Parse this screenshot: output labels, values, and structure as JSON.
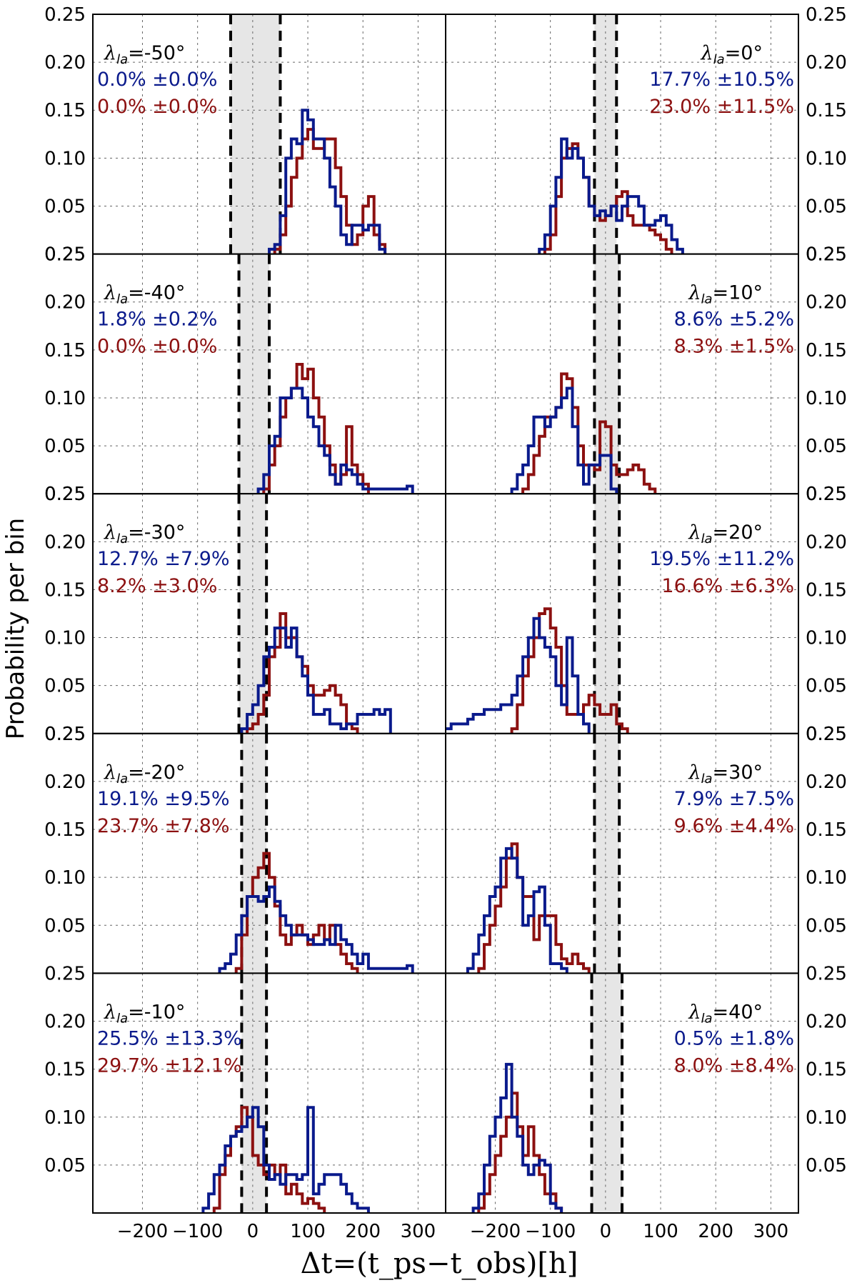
{
  "chart_data": {
    "type": "histogram-grid",
    "ylabel": "Probability per bin",
    "xlabel": "Δt=(t_ps−t_obs)[h]",
    "xlim": [
      -290,
      350
    ],
    "ylim": [
      0,
      0.25
    ],
    "x_ticks": [
      -200,
      -100,
      0,
      100,
      200,
      300
    ],
    "x_tick_labels": [
      "−200",
      "−100",
      "0",
      "100",
      "200",
      "300"
    ],
    "y_ticks": [
      0.05,
      0.1,
      0.15,
      0.2,
      0.25
    ],
    "y_tick_labels": [
      "0.05",
      "0.10",
      "0.15",
      "0.20",
      "0.25"
    ],
    "bottom_label": "0.25",
    "grid": true,
    "colors": {
      "blue": "#0a1a8c",
      "red": "#8c1010",
      "shade": "#e6e6e6"
    },
    "panels": [
      {
        "lambda": "-50",
        "column": "left",
        "row": 0,
        "label_blue": "0.0% ±0.0%",
        "label_red": "0.0% ±0.0%",
        "shade": [
          -40,
          50
        ],
        "blue": {
          "x0": 30,
          "bin": 10,
          "values": [
            0.005,
            0.01,
            0.04,
            0.1,
            0.12,
            0.115,
            0.15,
            0.14,
            0.12,
            0.12,
            0.1,
            0.07,
            0.05,
            0.02,
            0.01,
            0.03,
            0.03,
            0.025,
            0.03,
            0.03,
            0.005
          ]
        },
        "red": {
          "x0": 40,
          "bin": 10,
          "values": [
            0.005,
            0.02,
            0.05,
            0.08,
            0.1,
            0.12,
            0.13,
            0.11,
            0.11,
            0.12,
            0.12,
            0.09,
            0.06,
            0.03,
            0.01,
            0.02,
            0.05,
            0.06,
            0.02,
            0.01
          ]
        }
      },
      {
        "lambda": "-40",
        "column": "left",
        "row": 1,
        "label_blue": "1.8% ±0.2%",
        "label_red": "0.0% ±0.0%",
        "shade": [
          -25,
          30
        ],
        "blue": {
          "x0": 10,
          "bin": 10,
          "values": [
            0.005,
            0.02,
            0.05,
            0.06,
            0.1,
            0.1,
            0.11,
            0.11,
            0.1,
            0.08,
            0.07,
            0.05,
            0.04,
            0.02,
            0.01,
            0.03,
            0.025,
            0.02,
            0.01,
            0.005,
            0.005,
            0.005,
            0.005,
            0.005,
            0.005,
            0.005,
            0.005,
            0.008
          ]
        },
        "red": {
          "x0": 20,
          "bin": 10,
          "values": [
            0.005,
            0.03,
            0.05,
            0.08,
            0.1,
            0.11,
            0.135,
            0.12,
            0.13,
            0.1,
            0.08,
            0.05,
            0.03,
            0.01,
            0.02,
            0.07,
            0.03,
            0.02,
            0.01
          ]
        }
      },
      {
        "lambda": "-30",
        "column": "left",
        "row": 2,
        "label_blue": "12.7% ±7.9%",
        "label_red": "8.2% ±3.0%",
        "shade": [
          -25,
          25
        ],
        "blue": {
          "x0": -20,
          "bin": 10,
          "values": [
            0.005,
            0.02,
            0.03,
            0.05,
            0.08,
            0.09,
            0.11,
            0.11,
            0.09,
            0.11,
            0.08,
            0.06,
            0.04,
            0.02,
            0.02,
            0.025,
            0.01,
            0.01,
            0.005,
            0.01,
            0.01,
            0.02,
            0.02,
            0.02,
            0.025,
            0.02,
            0.025
          ]
        },
        "red": {
          "x0": -10,
          "bin": 10,
          "values": [
            0.005,
            0.01,
            0.02,
            0.04,
            0.08,
            0.09,
            0.125,
            0.1,
            0.1,
            0.08,
            0.07,
            0.05,
            0.04,
            0.04,
            0.045,
            0.05,
            0.04,
            0.03,
            0.01,
            0.005
          ]
        }
      },
      {
        "lambda": "-20",
        "column": "left",
        "row": 3,
        "label_blue": "19.1% ±9.5%",
        "label_red": "23.7% ±7.8%",
        "shade": [
          -20,
          25
        ],
        "blue": {
          "x0": -60,
          "bin": 10,
          "values": [
            0.005,
            0.01,
            0.02,
            0.04,
            0.06,
            0.08,
            0.08,
            0.075,
            0.08,
            0.09,
            0.075,
            0.06,
            0.05,
            0.04,
            0.04,
            0.04,
            0.035,
            0.03,
            0.03,
            0.035,
            0.03,
            0.05,
            0.035,
            0.03,
            0.02,
            0.01,
            0.02,
            0.005,
            0.005,
            0.005,
            0.005,
            0.005,
            0.005,
            0.005,
            0.008
          ]
        },
        "red": {
          "x0": -30,
          "bin": 10,
          "values": [
            0.005,
            0.04,
            0.08,
            0.1,
            0.11,
            0.125,
            0.1,
            0.07,
            0.04,
            0.03,
            0.04,
            0.05,
            0.04,
            0.03,
            0.04,
            0.05,
            0.035,
            0.05,
            0.03,
            0.02,
            0.01,
            0.005
          ]
        }
      },
      {
        "lambda": "-10",
        "column": "left",
        "row": 4,
        "label_blue": "25.5% ±13.3%",
        "label_red": "29.7% ±12.1%",
        "shade": [
          -20,
          25
        ],
        "blue": {
          "x0": -90,
          "bin": 10,
          "values": [
            0.005,
            0.02,
            0.04,
            0.05,
            0.07,
            0.08,
            0.085,
            0.09,
            0.1,
            0.11,
            0.09,
            0.05,
            0.035,
            0.04,
            0.03,
            0.04,
            0.04,
            0.035,
            0.04,
            0.11,
            0.02,
            0.03,
            0.04,
            0.04,
            0.04,
            0.03,
            0.02,
            0.01,
            0.005,
            0.005
          ]
        },
        "red": {
          "x0": -70,
          "bin": 10,
          "values": [
            0.005,
            0.04,
            0.06,
            0.08,
            0.09,
            0.11,
            0.1,
            0.06,
            0.05,
            0.04,
            0.05,
            0.04,
            0.05,
            0.02,
            0.03,
            0.02,
            0.01,
            0.015,
            0.01,
            0.005
          ]
        }
      },
      {
        "lambda": "0",
        "column": "right",
        "row": 0,
        "label_blue": "17.7% ±10.5%",
        "label_red": "23.0% ±11.5%",
        "shade": [
          -20,
          20
        ],
        "blue": {
          "x0": -120,
          "bin": 10,
          "values": [
            0.005,
            0.02,
            0.05,
            0.08,
            0.12,
            0.1,
            0.11,
            0.1,
            0.08,
            0.05,
            0.04,
            0.045,
            0.04,
            0.05,
            0.035,
            0.05,
            0.06,
            0.06,
            0.05,
            0.03,
            0.03,
            0.035,
            0.04,
            0.03,
            0.015,
            0.005
          ]
        },
        "red": {
          "x0": -110,
          "bin": 10,
          "values": [
            0.005,
            0.02,
            0.06,
            0.1,
            0.11,
            0.115,
            0.1,
            0.08,
            0.05,
            0.04,
            0.035,
            0.04,
            0.05,
            0.06,
            0.065,
            0.04,
            0.03,
            0.03,
            0.03,
            0.025,
            0.02,
            0.015,
            0.005
          ]
        }
      },
      {
        "lambda": "10",
        "column": "right",
        "row": 1,
        "label_blue": "8.6% ±5.2%",
        "label_red": "8.3% ±1.5%",
        "shade": [
          -20,
          25
        ],
        "blue": {
          "x0": -170,
          "bin": 10,
          "values": [
            0.005,
            0.02,
            0.03,
            0.05,
            0.08,
            0.08,
            0.07,
            0.08,
            0.09,
            0.1,
            0.11,
            0.07,
            0.03,
            0.01,
            0.03,
            0.03,
            0.04,
            0.04,
            0.005
          ]
        },
        "red": {
          "x0": -150,
          "bin": 10,
          "values": [
            0.005,
            0.02,
            0.04,
            0.06,
            0.08,
            0.08,
            0.09,
            0.125,
            0.12,
            0.09,
            0.05,
            0.03,
            0.03,
            0.025,
            0.075,
            0.07,
            0.03,
            0.02,
            0.02,
            0.025,
            0.03,
            0.025,
            0.01,
            0.005
          ]
        }
      },
      {
        "lambda": "20",
        "column": "right",
        "row": 2,
        "label_blue": "19.5% ±11.2%",
        "label_red": "16.6% ±6.3%",
        "shade": [
          -20,
          25
        ],
        "blue": {
          "x0": -300,
          "bin": 10,
          "values": [
            0.005,
            0.005,
            0.01,
            0.01,
            0.01,
            0.015,
            0.02,
            0.02,
            0.025,
            0.025,
            0.025,
            0.03,
            0.03,
            0.04,
            0.06,
            0.08,
            0.1,
            0.12,
            0.1,
            0.09,
            0.08,
            0.05,
            0.03,
            0.1,
            0.06,
            0.02,
            0.01
          ]
        },
        "red": {
          "x0": -170,
          "bin": 10,
          "values": [
            0.005,
            0.03,
            0.06,
            0.08,
            0.1,
            0.125,
            0.13,
            0.11,
            0.09,
            0.05,
            0.02,
            0.02,
            0.02,
            0.03,
            0.04,
            0.03,
            0.02,
            0.02,
            0.03,
            0.01,
            0.005
          ]
        }
      },
      {
        "lambda": "30",
        "column": "right",
        "row": 3,
        "label_blue": "7.9% ±7.5%",
        "label_red": "9.6% ±4.4%",
        "shade": [
          -20,
          25
        ],
        "blue": {
          "x0": -250,
          "bin": 10,
          "values": [
            0.005,
            0.02,
            0.04,
            0.06,
            0.08,
            0.09,
            0.12,
            0.13,
            0.12,
            0.1,
            0.05,
            0.06,
            0.085,
            0.09,
            0.05,
            0.01,
            0.01,
            0.005
          ]
        },
        "red": {
          "x0": -230,
          "bin": 10,
          "values": [
            0.005,
            0.03,
            0.05,
            0.07,
            0.09,
            0.12,
            0.135,
            0.1,
            0.08,
            0.08,
            0.035,
            0.06,
            0.06,
            0.06,
            0.03,
            0.015,
            0.01,
            0.02,
            0.01,
            0.005
          ]
        }
      },
      {
        "lambda": "40",
        "column": "right",
        "row": 4,
        "label_blue": "0.5% ±1.8%",
        "label_red": "8.0% ±8.4%",
        "shade": [
          -25,
          30
        ],
        "blue": {
          "x0": -240,
          "bin": 10,
          "values": [
            0.005,
            0.02,
            0.05,
            0.08,
            0.1,
            0.12,
            0.155,
            0.1,
            0.08,
            0.05,
            0.04,
            0.05,
            0.055,
            0.05,
            0.01,
            0.005
          ]
        },
        "red": {
          "x0": -230,
          "bin": 10,
          "values": [
            0.005,
            0.02,
            0.04,
            0.06,
            0.08,
            0.1,
            0.125,
            0.09,
            0.06,
            0.09,
            0.06,
            0.04,
            0.02,
            0.02,
            0.005
          ]
        }
      }
    ]
  }
}
